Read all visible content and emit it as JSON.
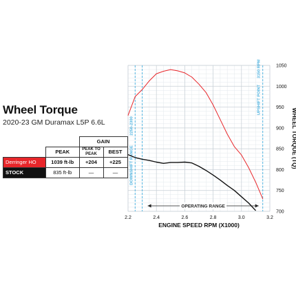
{
  "heading": {
    "title": "Wheel Torque",
    "subtitle": "2020-23 GM Duramax L5P 6.6L"
  },
  "legend_table": {
    "col_peak": "PEAK",
    "col_gain": "GAIN",
    "col_peak_to_peak": "PEAK TO PEAK",
    "col_best": "BEST",
    "rows": [
      {
        "name": "Derringer HO",
        "peak": "1039 ft-lb",
        "peak_to_peak": "+204",
        "best": "+225",
        "color": "#e8262a"
      },
      {
        "name": "STOCK",
        "peak": "835 ft-lb",
        "peak_to_peak": "—",
        "best": "—",
        "color": "#111111"
      }
    ]
  },
  "chart_data": {
    "type": "line",
    "xlabel": "ENGINE SPEED RPM (X1000)",
    "ylabel": "WHEEL TORQUE (TQ)",
    "xlim": [
      2.2,
      3.2
    ],
    "ylim": [
      700,
      1050
    ],
    "x_ticks": [
      "2.2",
      "2.4",
      "2.6",
      "2.8",
      "3.0",
      "3.2"
    ],
    "y_ticks": [
      "700",
      "750",
      "800",
      "850",
      "900",
      "950",
      "1000",
      "1050"
    ],
    "grid": true,
    "series": [
      {
        "name": "Derringer HO",
        "color": "#e8262a",
        "x": [
          2.2,
          2.25,
          2.3,
          2.35,
          2.4,
          2.45,
          2.5,
          2.55,
          2.6,
          2.65,
          2.7,
          2.75,
          2.8,
          2.85,
          2.9,
          2.95,
          3.0,
          3.05,
          3.1,
          3.15
        ],
        "y": [
          930,
          975,
          992,
          1013,
          1030,
          1036,
          1040,
          1037,
          1032,
          1022,
          1005,
          985,
          955,
          920,
          885,
          855,
          835,
          805,
          770,
          730
        ]
      },
      {
        "name": "STOCK",
        "color": "#111111",
        "x": [
          2.2,
          2.25,
          2.3,
          2.35,
          2.4,
          2.45,
          2.5,
          2.55,
          2.6,
          2.65,
          2.7,
          2.75,
          2.8,
          2.85,
          2.9,
          2.95,
          3.0,
          3.05,
          3.1
        ],
        "y": [
          836,
          829,
          825,
          822,
          818,
          815,
          817,
          817,
          818,
          816,
          808,
          798,
          787,
          775,
          762,
          750,
          735,
          720,
          702
        ]
      }
    ],
    "annotations": {
      "downshift": {
        "label": "DOWNSHIFT RANGE",
        "rpm_label": "2250-2300",
        "x": [
          2.25,
          2.3
        ]
      },
      "upshift": {
        "label": "UPSHIFT POINT",
        "rpm_label": "3150 RPM",
        "x": 3.15
      },
      "operating": {
        "label": "OPERATING RANGE",
        "x": [
          2.3,
          3.15
        ]
      }
    }
  }
}
